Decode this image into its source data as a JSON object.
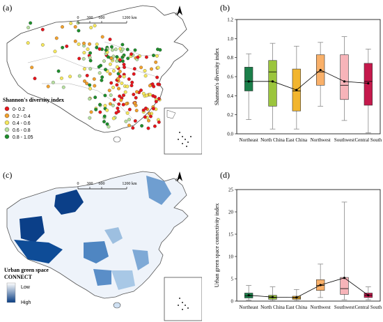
{
  "panels": {
    "a": "(a)",
    "b": "(b)",
    "c": "(c)",
    "d": "(d)"
  },
  "map_a": {
    "scale_ticks": [
      "0",
      "300",
      "600",
      "1200 km"
    ],
    "north": "N",
    "legend_title": "Shannon's diversity index",
    "legend_items": [
      {
        "label": "0- 0.2",
        "color": "#e8141b"
      },
      {
        "label": "0.2 - 0.4",
        "color": "#f2a12c"
      },
      {
        "label": "0.4 - 0.6",
        "color": "#f6e85c"
      },
      {
        "label": "0.6 - 0.8",
        "color": "#b7e0a0"
      },
      {
        "label": "0.8 - 1.05",
        "color": "#1e8e2c"
      }
    ]
  },
  "map_c": {
    "scale_ticks": [
      "0",
      "300",
      "600",
      "1200 km"
    ],
    "north": "N",
    "legend_title_line1": "Urban green space",
    "legend_title_line2": "CONNECT",
    "legend_low": "Low",
    "legend_high": "High",
    "gradient": [
      "#ffffff",
      "#083c82"
    ]
  },
  "chart_data": [
    {
      "type": "box",
      "panel": "b",
      "ylabel": "Shannon's diversity index",
      "ylim": [
        0,
        1.2
      ],
      "yticks": [
        "0.0",
        "0.2",
        "0.4",
        "0.6",
        "0.8",
        "1.0",
        "1.2"
      ],
      "categories": [
        "Northeast",
        "North China",
        "East China",
        "Northwest",
        "Southwest",
        "Central South"
      ],
      "colors": [
        "#1b7f4a",
        "#9bc53d",
        "#f2b52e",
        "#f9b069",
        "#f7b4b9",
        "#c5194c"
      ],
      "boxes": [
        {
          "min": 0.15,
          "q1": 0.45,
          "median": 0.55,
          "q3": 0.7,
          "max": 0.84,
          "mean": 0.55
        },
        {
          "min": 0.05,
          "q1": 0.29,
          "median": 0.65,
          "q3": 0.77,
          "max": 0.95,
          "mean": 0.55
        },
        {
          "min": 0.05,
          "q1": 0.24,
          "median": 0.45,
          "q3": 0.68,
          "max": 0.92,
          "mean": 0.46
        },
        {
          "min": 0.29,
          "q1": 0.51,
          "median": 0.65,
          "q3": 0.83,
          "max": 0.96,
          "mean": 0.67
        },
        {
          "min": 0.14,
          "q1": 0.36,
          "median": 0.51,
          "q3": 0.83,
          "max": 1.02,
          "mean": 0.55
        },
        {
          "min": 0.01,
          "q1": 0.3,
          "median": 0.55,
          "q3": 0.74,
          "max": 0.89,
          "mean": 0.53
        }
      ]
    },
    {
      "type": "box",
      "panel": "d",
      "ylabel": "Urban green space connectivity index",
      "ylim": [
        0,
        25
      ],
      "yticks": [
        "0",
        "5",
        "10",
        "15",
        "20",
        "25"
      ],
      "categories": [
        "Northeast",
        "North China",
        "East China",
        "Northwest",
        "Southwest",
        "Central South"
      ],
      "colors": [
        "#1b7f4a",
        "#9bc53d",
        "#f2b52e",
        "#f9b069",
        "#f7b4b9",
        "#c5194c"
      ],
      "boxes": [
        {
          "min": 0.2,
          "q1": 0.7,
          "median": 1.2,
          "q3": 1.8,
          "max": 3.5,
          "mean": 1.3
        },
        {
          "min": 0.1,
          "q1": 0.4,
          "median": 0.8,
          "q3": 1.3,
          "max": 3.2,
          "mean": 0.9
        },
        {
          "min": 0.1,
          "q1": 0.4,
          "median": 0.7,
          "q3": 1.1,
          "max": 2.6,
          "mean": 0.8
        },
        {
          "min": 0.8,
          "q1": 2.4,
          "median": 3.5,
          "q3": 4.8,
          "max": 8.3,
          "mean": 3.6
        },
        {
          "min": 0.3,
          "q1": 1.5,
          "median": 2.8,
          "q3": 5.3,
          "max": 22.2,
          "mean": 5.2
        },
        {
          "min": 0.3,
          "q1": 0.8,
          "median": 1.3,
          "q3": 1.8,
          "max": 3.2,
          "mean": 1.3
        }
      ]
    }
  ]
}
